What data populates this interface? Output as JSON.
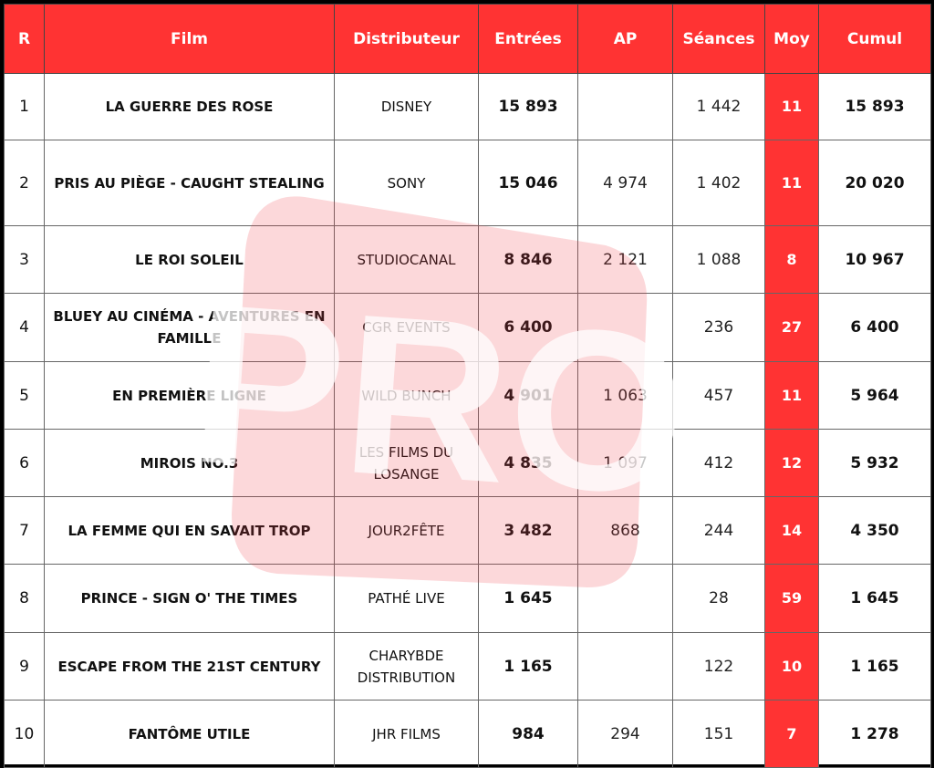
{
  "columns": [
    "R",
    "Film",
    "Distributeur",
    "Entrées",
    "AP",
    "Séances",
    "Moy",
    "Cumul"
  ],
  "rows": [
    {
      "r": "1",
      "film": "LA GUERRE DES ROSE",
      "dist": "DISNEY",
      "entrees": "15 893",
      "ap": "",
      "seances": "1 442",
      "moy": "11",
      "cumul": "15 893"
    },
    {
      "r": "2",
      "film": "PRIS AU PIÈGE - CAUGHT STEALING",
      "dist": "SONY",
      "entrees": "15 046",
      "ap": "4 974",
      "seances": "1 402",
      "moy": "11",
      "cumul": "20 020"
    },
    {
      "r": "3",
      "film": "LE ROI SOLEIL",
      "dist": "STUDIOCANAL",
      "entrees": "8 846",
      "ap": "2 121",
      "seances": "1 088",
      "moy": "8",
      "cumul": "10 967"
    },
    {
      "r": "4",
      "film": "BLUEY AU CINÉMA - AVENTURES EN FAMILLE",
      "dist": "CGR EVENTS",
      "entrees": "6 400",
      "ap": "",
      "seances": "236",
      "moy": "27",
      "cumul": "6 400"
    },
    {
      "r": "5",
      "film": "EN PREMIÈRE LIGNE",
      "dist": "WILD BUNCH",
      "entrees": "4 901",
      "ap": "1 063",
      "seances": "457",
      "moy": "11",
      "cumul": "5 964"
    },
    {
      "r": "6",
      "film": "MIROIS NO.3",
      "dist": "LES FILMS DU LOSANGE",
      "entrees": "4 835",
      "ap": "1 097",
      "seances": "412",
      "moy": "12",
      "cumul": "5 932"
    },
    {
      "r": "7",
      "film": "LA FEMME QUI EN SAVAIT TROP",
      "dist": "JOUR2FÊTE",
      "entrees": "3 482",
      "ap": "868",
      "seances": "244",
      "moy": "14",
      "cumul": "4 350"
    },
    {
      "r": "8",
      "film": "PRINCE - SIGN O' THE TIMES",
      "dist": "PATHÉ LIVE",
      "entrees": "1 645",
      "ap": "",
      "seances": "28",
      "moy": "59",
      "cumul": "1 645"
    },
    {
      "r": "9",
      "film": "ESCAPE FROM THE 21ST CENTURY",
      "dist": "CHARYBDE DISTRIBUTION",
      "entrees": "1 165",
      "ap": "",
      "seances": "122",
      "moy": "10",
      "cumul": "1 165"
    },
    {
      "r": "10",
      "film": "FANTÔME UTILE",
      "dist": "JHR FILMS",
      "entrees": "984",
      "ap": "294",
      "seances": "151",
      "moy": "7",
      "cumul": "1 278"
    }
  ],
  "watermark": {
    "text": "PRO",
    "color": "#f03c46"
  },
  "colors": {
    "header": "#ff3333",
    "moy": "#ff3333"
  }
}
